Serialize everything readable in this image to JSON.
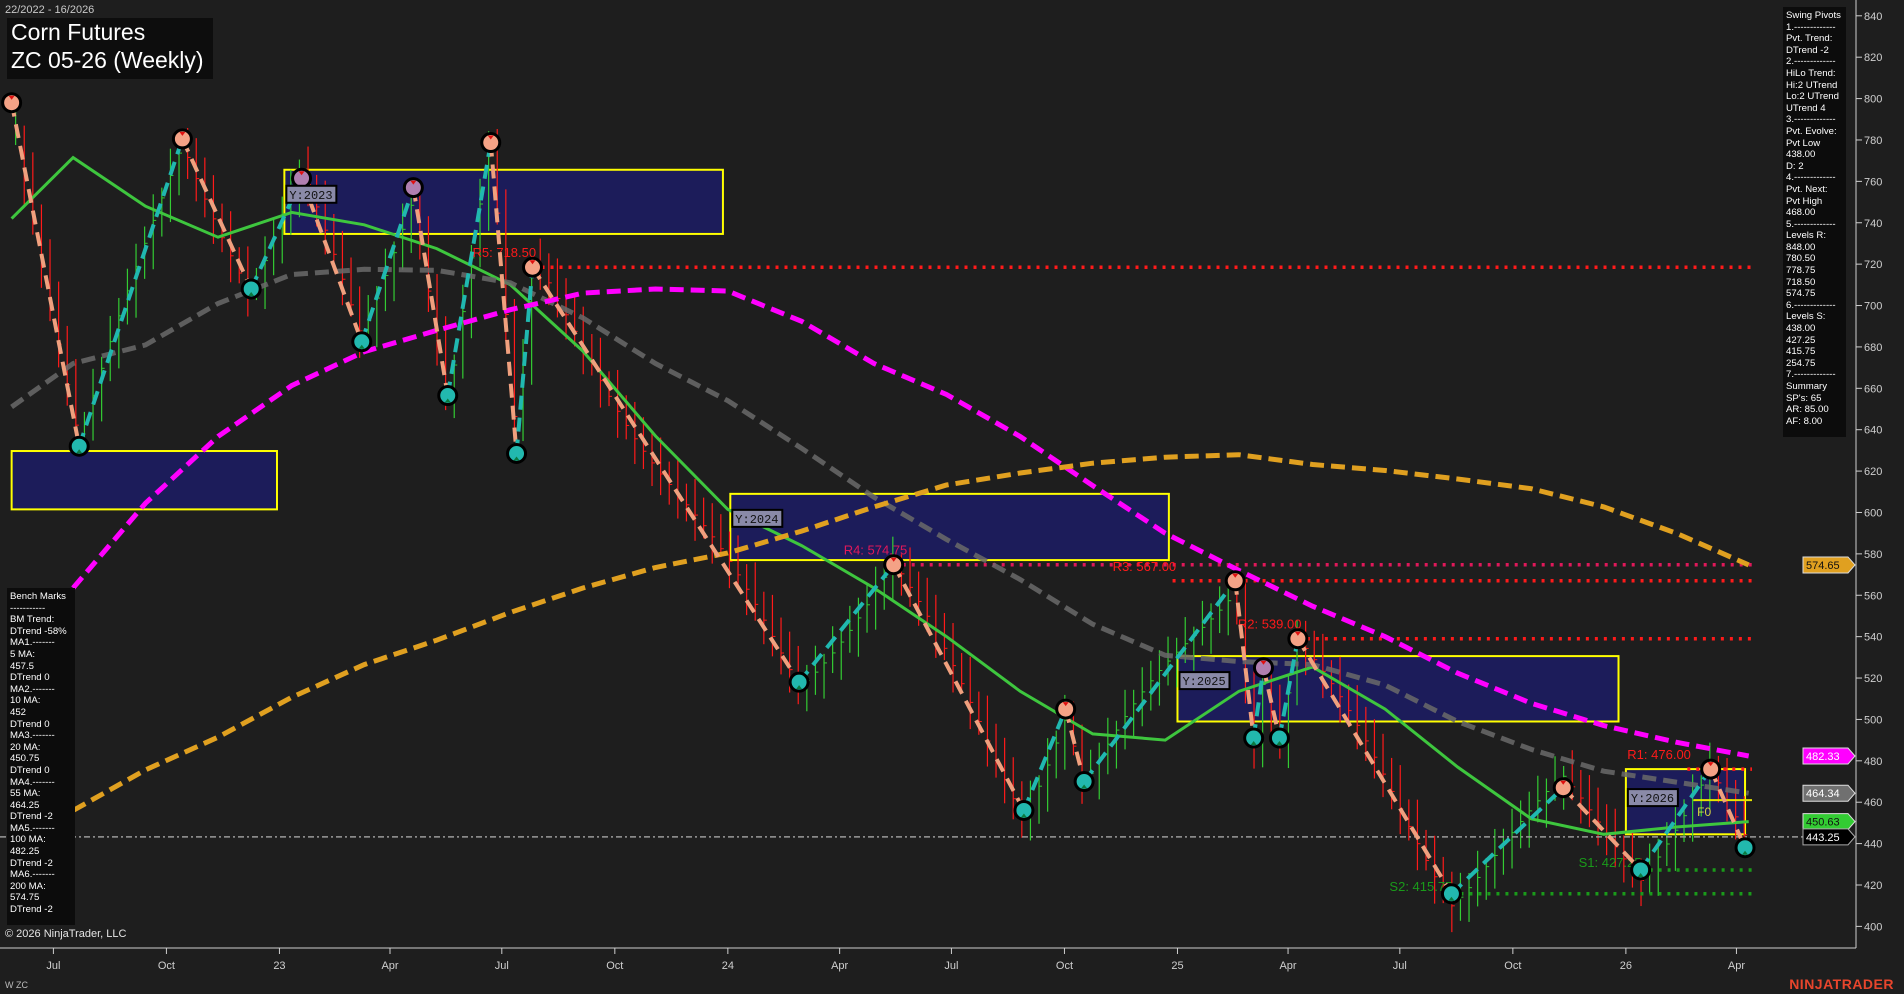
{
  "header": {
    "date_range": "22/2022 - 16/2026",
    "title_line1": "Corn Futures",
    "title_line2": "ZC 05-26 (Weekly)"
  },
  "footer": {
    "copyright": "© 2026 NinjaTrader, LLC",
    "series_tag": "W ZC",
    "logo_text": "NINJATRADER"
  },
  "bench_marks": [
    "Bench Marks",
    "-----------",
    "BM Trend:",
    "DTrend -58%",
    "MA1.-------",
    "5 MA:",
    "457.5",
    "DTrend 0",
    "MA2.-------",
    "10 MA:",
    "452",
    "DTrend 0",
    "MA3.-------",
    "20 MA:",
    "450.75",
    "DTrend 0",
    "MA4.-------",
    "55 MA:",
    "464.25",
    "DTrend -2",
    "MA5.-------",
    "100 MA:",
    "482.25",
    "DTrend -2",
    "MA6.-------",
    "200 MA:",
    "574.75",
    "DTrend -2"
  ],
  "swing_pivots": [
    "Swing Pivots",
    "1.-------------",
    "Pvt. Trend:",
    "DTrend -2",
    "2.-------------",
    "HiLo Trend:",
    "Hi:2 UTrend",
    "Lo:2 UTrend",
    "UTrend 4",
    "3.-------------",
    "Pvt. Evolve:",
    "Pvt Low",
    "438.00",
    "D: 2",
    "4.-------------",
    "Pvt. Next:",
    "Pvt High",
    "468.00",
    "5.-------------",
    "Levels R:",
    "848.00",
    "780.50",
    "778.75",
    "718.50",
    "574.75",
    "6.-------------",
    "Levels S:",
    "438.00",
    "427.25",
    "415.75",
    "254.75",
    "7.-------------",
    "Summary",
    "SP's: 65",
    "AR: 85.00",
    "AF: 8.00"
  ],
  "chart_data": {
    "type": "line",
    "title": "Corn Futures ZC 05-26 (Weekly)",
    "ylim": [
      400,
      840
    ],
    "y_ticks": [
      400,
      420,
      440,
      460,
      480,
      500,
      520,
      540,
      560,
      580,
      600,
      620,
      640,
      660,
      680,
      700,
      720,
      740,
      760,
      780,
      800,
      820,
      840
    ],
    "x_ticks": [
      {
        "label": "Jul",
        "date": "2022-07-01"
      },
      {
        "label": "Oct",
        "date": "2022-10-01"
      },
      {
        "label": "23",
        "date": "2023-01-01"
      },
      {
        "label": "Apr",
        "date": "2023-04-01"
      },
      {
        "label": "Jul",
        "date": "2023-07-01"
      },
      {
        "label": "Oct",
        "date": "2023-10-01"
      },
      {
        "label": "24",
        "date": "2024-01-01"
      },
      {
        "label": "Apr",
        "date": "2024-04-01"
      },
      {
        "label": "Jul",
        "date": "2024-07-01"
      },
      {
        "label": "Oct",
        "date": "2024-10-01"
      },
      {
        "label": "25",
        "date": "2025-01-01"
      },
      {
        "label": "Apr",
        "date": "2025-04-01"
      },
      {
        "label": "Jul",
        "date": "2025-07-01"
      },
      {
        "label": "Oct",
        "date": "2025-10-01"
      },
      {
        "label": "26",
        "date": "2026-01-01"
      },
      {
        "label": "Apr",
        "date": "2026-04-01"
      }
    ],
    "grid": false,
    "swing_pivots": [
      {
        "date": "2022-05-28",
        "price": 798,
        "type": "high"
      },
      {
        "date": "2022-07-22",
        "price": 632,
        "type": "low"
      },
      {
        "date": "2022-10-14",
        "price": 780.5,
        "type": "high"
      },
      {
        "date": "2022-12-09",
        "price": 708,
        "type": "low"
      },
      {
        "date": "2023-01-19",
        "price": 761.5,
        "type": "high",
        "color": "#b07fb0"
      },
      {
        "date": "2023-03-09",
        "price": 682.5,
        "type": "low"
      },
      {
        "date": "2023-04-20",
        "price": 757,
        "type": "high",
        "color": "#b07fb0"
      },
      {
        "date": "2023-05-18",
        "price": 656.5,
        "type": "low"
      },
      {
        "date": "2023-06-22",
        "price": 778.75,
        "type": "high"
      },
      {
        "date": "2023-07-13",
        "price": 628.5,
        "type": "low"
      },
      {
        "date": "2023-07-26",
        "price": 718.5,
        "type": "high"
      },
      {
        "date": "2024-02-28",
        "price": 518,
        "type": "low"
      },
      {
        "date": "2024-05-15",
        "price": 574.75,
        "type": "high"
      },
      {
        "date": "2024-08-29",
        "price": 456,
        "type": "low"
      },
      {
        "date": "2024-10-02",
        "price": 505,
        "type": "high"
      },
      {
        "date": "2024-10-17",
        "price": 470,
        "type": "low"
      },
      {
        "date": "2025-02-17",
        "price": 567,
        "type": "high"
      },
      {
        "date": "2025-03-04",
        "price": 491,
        "type": "low"
      },
      {
        "date": "2025-03-12",
        "price": 525,
        "type": "high",
        "color": "#b07fb0"
      },
      {
        "date": "2025-03-25",
        "price": 491,
        "type": "low"
      },
      {
        "date": "2025-04-09",
        "price": 539,
        "type": "high"
      },
      {
        "date": "2025-08-12",
        "price": 415.75,
        "type": "low"
      },
      {
        "date": "2025-11-11",
        "price": 467,
        "type": "high"
      },
      {
        "date": "2026-01-13",
        "price": 427.25,
        "type": "low"
      },
      {
        "date": "2026-03-11",
        "price": 476,
        "type": "high"
      },
      {
        "date": "2026-04-08",
        "price": 438,
        "type": "low"
      }
    ],
    "ma_dates": [
      "2022-05-28",
      "2022-07-17",
      "2022-09-14",
      "2022-11-12",
      "2023-01-11",
      "2023-03-11",
      "2023-05-09",
      "2023-07-08",
      "2023-09-05",
      "2023-11-03",
      "2024-01-01",
      "2024-03-01",
      "2024-04-29",
      "2024-06-27",
      "2024-08-26",
      "2024-10-24",
      "2024-12-22",
      "2025-02-20",
      "2025-04-21",
      "2025-06-19",
      "2025-08-17",
      "2025-10-16",
      "2025-12-14",
      "2026-02-11",
      "2026-04-11"
    ],
    "series": [
      {
        "name": "20 MA",
        "color": "#3ec63e",
        "style": "solid",
        "values": [
          742,
          771.5,
          748,
          733,
          745,
          739,
          727.5,
          710,
          678,
          637,
          601.5,
          584,
          563.5,
          540,
          513.6,
          493,
          490,
          513.6,
          525.4,
          505,
          477,
          452,
          444.5,
          448,
          450.63
        ]
      },
      {
        "name": "55 MA",
        "color": "#6a6a6a",
        "style": "dashed",
        "values": [
          651,
          672,
          681,
          701,
          715,
          717.5,
          717,
          711,
          694,
          672,
          654,
          631,
          607.4,
          587,
          567.6,
          546,
          531,
          528,
          526.5,
          516.6,
          499,
          485.5,
          475,
          469.7,
          464.34
        ]
      },
      {
        "name": "100 MA",
        "color": "#ff00ff",
        "style": "dashed",
        "values": [
          null,
          563.5,
          604.5,
          636.7,
          661.3,
          677.7,
          688,
          698,
          706,
          708,
          707,
          692.4,
          672,
          657,
          636.7,
          613,
          590,
          572,
          554.7,
          540,
          522.4,
          507.8,
          497,
          489,
          482.33
        ]
      },
      {
        "name": "200 MA",
        "color": "#e0a020",
        "style": "dashed",
        "values": [
          null,
          456,
          475.6,
          491.4,
          510.7,
          526.5,
          538.3,
          551.7,
          563.5,
          573.4,
          580.4,
          591,
          602.7,
          613.3,
          619.1,
          623.8,
          626.7,
          627.9,
          623.2,
          620.3,
          616.2,
          611.5,
          602.7,
          590,
          574.65
        ]
      }
    ],
    "yearly_boxes": [
      {
        "label": "",
        "start": "2022-05-28",
        "end": "2022-12-30",
        "high": 629.7,
        "low": 601.5
      },
      {
        "label": "Y:2023",
        "start": "2023-01-05",
        "end": "2023-12-28",
        "high": 765.6,
        "low": 734.6
      },
      {
        "label": "Y:2024",
        "start": "2024-01-03",
        "end": "2024-12-25",
        "high": 609,
        "low": 577
      },
      {
        "label": "Y:2025",
        "start": "2025-01-01",
        "end": "2025-12-26",
        "high": 530.6,
        "low": 499
      },
      {
        "label": "Y:2026",
        "start": "2026-01-01",
        "end": "2026-04-08",
        "high": 476,
        "low": 444.5
      }
    ],
    "levels": [
      {
        "label": "R5: 718.50",
        "price": 718.5,
        "from": "2023-07-26",
        "color": "#ff1a1a"
      },
      {
        "label": "R4: 574.75",
        "price": 574.75,
        "from": "2024-05-15",
        "color": "#e0185a"
      },
      {
        "label": "R3: 567.00",
        "price": 567,
        "from": "2024-12-28",
        "color": "#ff1a1a"
      },
      {
        "label": "R2: 539.00",
        "price": 539,
        "from": "2025-04-09",
        "color": "#ff1a1a"
      },
      {
        "label": "R1: 476.00",
        "price": 476,
        "from": "2026-02-20",
        "color": "#ff1a1a"
      },
      {
        "label": "S1: 427.25",
        "price": 427.25,
        "from": "2026-01-13",
        "color": "#1a9a1a"
      },
      {
        "label": "S2: 415.75",
        "price": 415.75,
        "from": "2025-08-12",
        "color": "#1a9a1a"
      }
    ],
    "f0_label": "F0",
    "last_price": 443.25,
    "price_markers": [
      {
        "value": "574.65",
        "bg": "#e0a020",
        "fg": "#111"
      },
      {
        "value": "482.33",
        "bg": "#ff00ff",
        "fg": "#fff"
      },
      {
        "value": "464.34",
        "bg": "#707070",
        "fg": "#fff"
      },
      {
        "value": "450.63",
        "bg": "#33cc33",
        "fg": "#111"
      },
      {
        "value": "443.25",
        "bg": "#000000",
        "fg": "#fff"
      }
    ]
  }
}
